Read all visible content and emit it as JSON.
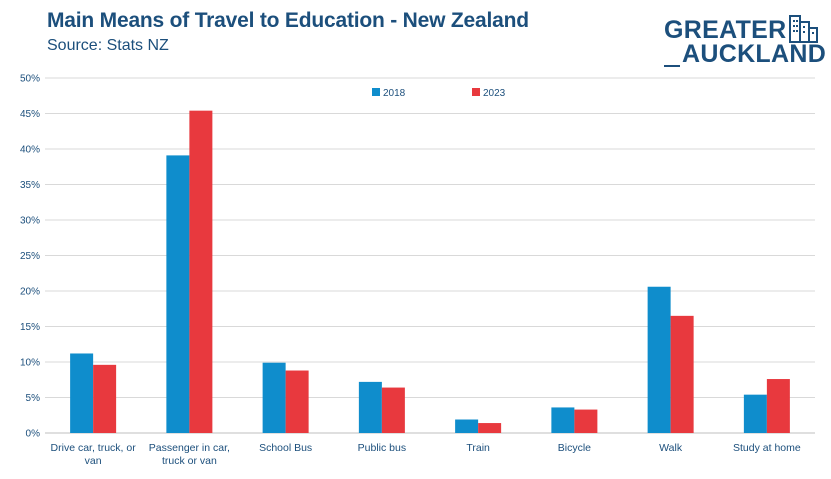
{
  "header": {
    "title": "Main Means of Travel to Education - New Zealand",
    "subtitle": "Source: Stats NZ"
  },
  "logo": {
    "line1": "GREATER",
    "line2": "AUCKLAND",
    "icon": "building-icon"
  },
  "colors": {
    "series_2018": "#0f8dcc",
    "series_2023": "#e8393e",
    "text": "#1c4f7c",
    "grid": "#d9d9d9"
  },
  "chart_data": {
    "type": "bar",
    "title": "Main Means of Travel to Education - New Zealand",
    "subtitle": "Source: Stats NZ",
    "categories": [
      [
        "Drive car, truck, or",
        "van"
      ],
      [
        "Passenger in car,",
        "truck or van"
      ],
      [
        "School Bus"
      ],
      [
        "Public bus"
      ],
      [
        "Train"
      ],
      [
        "Bicycle"
      ],
      [
        "Walk"
      ],
      [
        "Study at home"
      ]
    ],
    "series": [
      {
        "name": "2018",
        "values": [
          11.2,
          39.1,
          9.9,
          7.2,
          1.9,
          3.6,
          20.6,
          5.4
        ]
      },
      {
        "name": "2023",
        "values": [
          9.6,
          45.4,
          8.8,
          6.4,
          1.4,
          3.3,
          16.5,
          7.6
        ]
      }
    ],
    "yticks": [
      "0%",
      "5%",
      "10%",
      "15%",
      "20%",
      "25%",
      "30%",
      "35%",
      "40%",
      "45%",
      "50%"
    ],
    "ylim": [
      0,
      50
    ],
    "grid": true,
    "legend_position": "top-center"
  }
}
